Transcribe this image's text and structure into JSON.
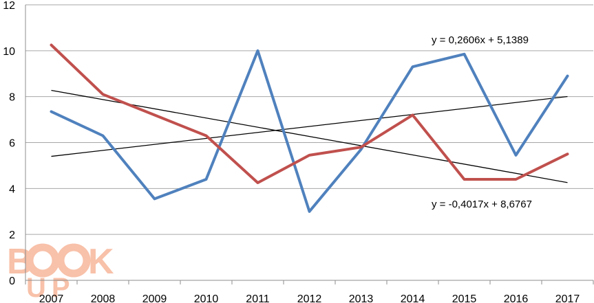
{
  "chart_data": {
    "type": "line",
    "title": "",
    "xlabel": "",
    "ylabel": "",
    "categories": [
      "2007",
      "2008",
      "2009",
      "2010",
      "2011",
      "2012",
      "2013",
      "2014",
      "2015",
      "2016",
      "2017"
    ],
    "ylim": [
      0,
      12
    ],
    "yticks": [
      0,
      2,
      4,
      6,
      8,
      10,
      12
    ],
    "grid": "horizontal",
    "legend": "none",
    "series": [
      {
        "color": "#4f81bd",
        "values": [
          7.35,
          6.3,
          3.55,
          4.4,
          10.0,
          3.0,
          5.7,
          9.3,
          9.85,
          5.45,
          8.9
        ]
      },
      {
        "color": "#c0504d",
        "values": [
          10.25,
          8.1,
          7.2,
          6.3,
          4.25,
          5.45,
          5.8,
          7.2,
          4.4,
          4.4,
          5.5
        ]
      }
    ],
    "trendlines": [
      {
        "equation": "y = 0,2606x + 5,1389",
        "slope": 0.2606,
        "intercept": 5.1389,
        "color": "#000000"
      },
      {
        "equation": "y = -0,4017x + 8,6767",
        "slope": -0.4017,
        "intercept": 8.6767,
        "color": "#000000"
      }
    ],
    "watermark": {
      "text": "BOOK UP",
      "color": "#f4a27f"
    }
  }
}
